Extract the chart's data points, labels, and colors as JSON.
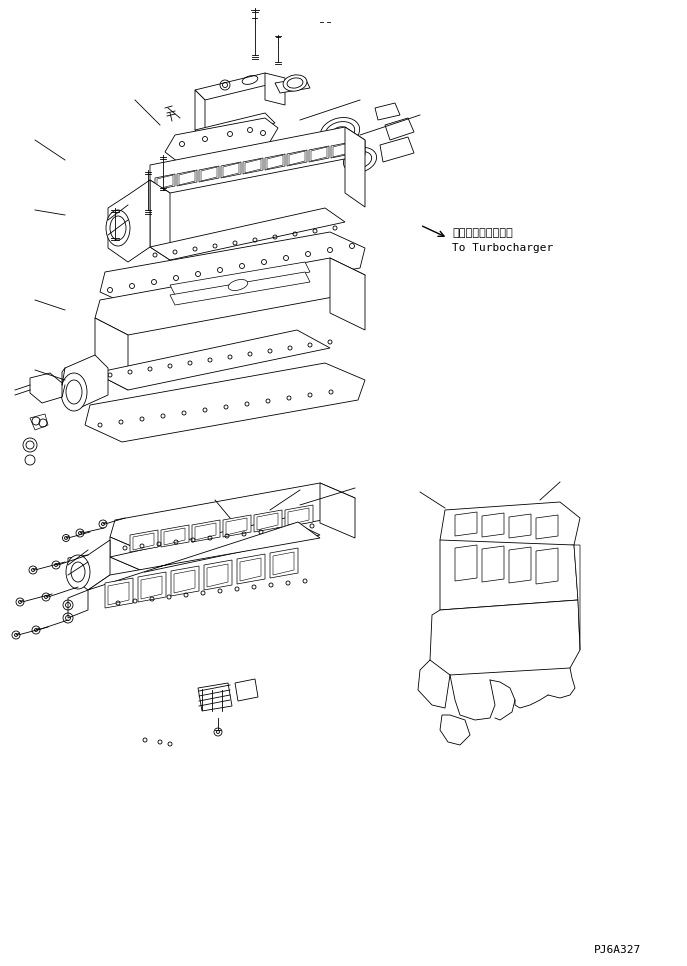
{
  "bg_color": "#ffffff",
  "line_color": "#000000",
  "annotation_japanese": "ターボチャージャヘ",
  "annotation_english": "To Turbocharger",
  "part_id": "PJ6A327",
  "fig_width": 6.87,
  "fig_height": 9.66,
  "dpi": 100
}
